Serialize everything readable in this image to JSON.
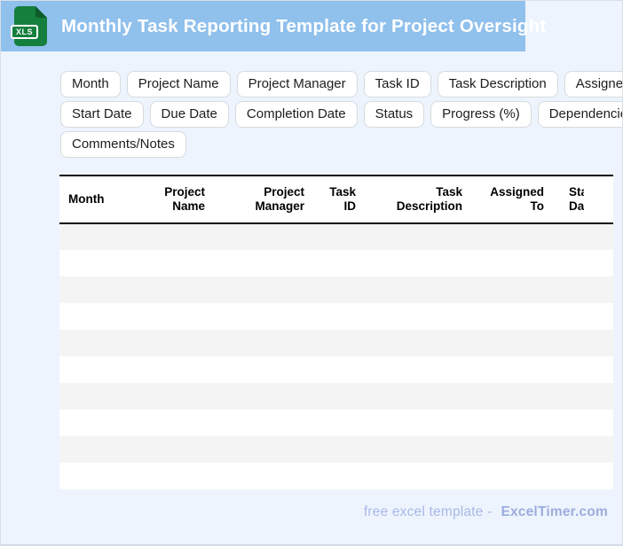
{
  "titlebar": {
    "title": "Monthly Task Reporting Template for Project Oversight",
    "icon_label": "XLS"
  },
  "chips": {
    "rows": [
      [
        "Month",
        "Project Name",
        "Project Manager",
        "Task ID",
        "Task Description",
        "Assigned To"
      ],
      [
        "Start Date",
        "Due Date",
        "Completion Date",
        "Status",
        "Progress (%)",
        "Dependencies"
      ],
      [
        "Comments/Notes"
      ]
    ]
  },
  "table": {
    "columns": [
      {
        "label": "Month",
        "align": "left"
      },
      {
        "label": "Project Name",
        "align": "right"
      },
      {
        "label": "Project Manager",
        "align": "right"
      },
      {
        "label": "Task ID",
        "align": "right"
      },
      {
        "label": "Task Description",
        "align": "right"
      },
      {
        "label": "Assigned To",
        "align": "right"
      },
      {
        "label": "Start Date",
        "align": "right",
        "truncated": true
      }
    ],
    "empty_row_count": 10
  },
  "footer": {
    "text": "free excel template -",
    "brand": "ExcelTimer.com"
  },
  "colors": {
    "titlebar_bg": "#90c0ec",
    "icon_green": "#157f3d",
    "icon_fold_green": "#0c5c2b",
    "page_bg": "#edf4fd",
    "row_alt": "#f4f4f4",
    "table_border": "#0a0a0a",
    "footer_text": "#a9b7e7",
    "footer_brand": "#9cadde"
  }
}
